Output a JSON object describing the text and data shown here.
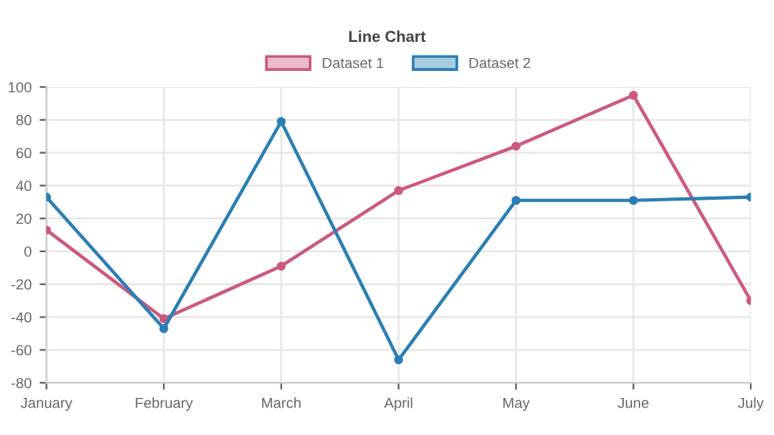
{
  "chart_data": {
    "type": "line",
    "title": "Line Chart",
    "categories": [
      "January",
      "February",
      "March",
      "April",
      "May",
      "June",
      "July"
    ],
    "series": [
      {
        "name": "Dataset 1",
        "color": "#cc5a7e",
        "values": [
          13,
          -41,
          -9,
          37,
          64,
          95,
          -30
        ]
      },
      {
        "name": "Dataset 2",
        "color": "#2b7fb4",
        "values": [
          33,
          -47,
          79,
          -66,
          31,
          31,
          33
        ]
      }
    ],
    "ylim": [
      -80,
      100
    ],
    "yticks": [
      -80,
      -60,
      -40,
      -20,
      0,
      20,
      40,
      60,
      80,
      100
    ],
    "grid": true,
    "legend": "top",
    "marker": "circle",
    "line_style": "solid"
  }
}
